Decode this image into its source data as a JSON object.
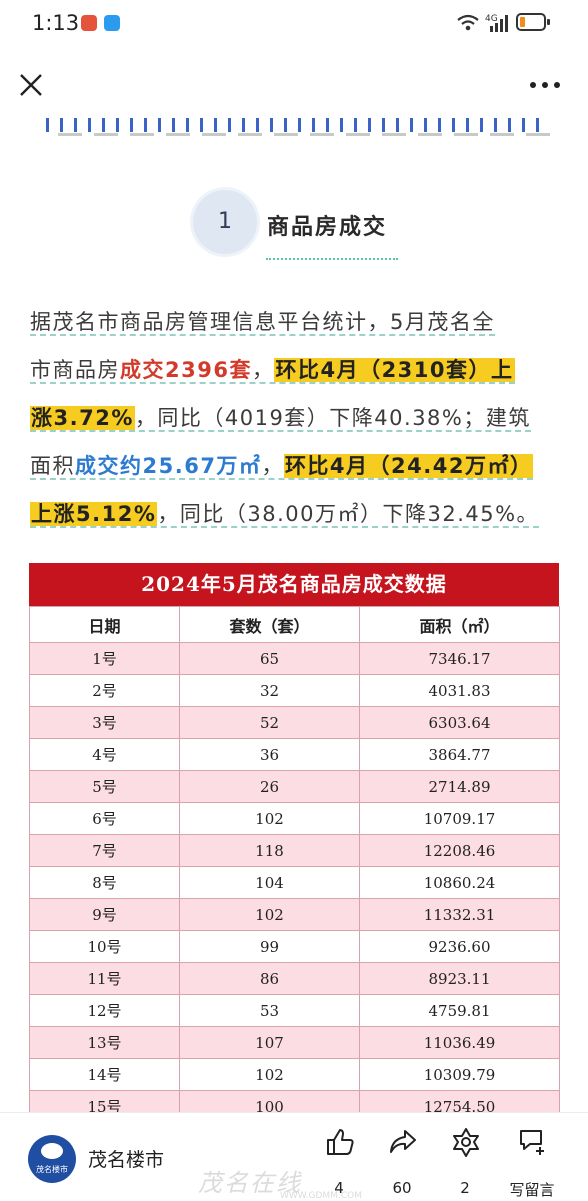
{
  "status_bar": {
    "time": "1:13",
    "network": "4G"
  },
  "article": {
    "section_number": "1",
    "section_title": "商品房成交",
    "paragraph": {
      "l1": "据茂名市商品房管理信息平台统计，5月茂名全",
      "l2a": "市商品房",
      "l2b": "成交2396套",
      "l2c": "，",
      "l2d": "环比4月（2310套）上",
      "l3a": "涨3.72%",
      "l3b": "，同比（4019套）下降40.38%；建筑",
      "l4a": "面积",
      "l4b": "成交约25.67万㎡",
      "l4c": "，",
      "l4d": "环比4月（24.42万㎡）",
      "l5a": "上涨5.12%",
      "l5b": "，同比（38.00万㎡）下降32.45%。"
    },
    "table": {
      "title": "2024年5月茂名商品房成交数据",
      "headers": [
        "日期",
        "套数（套）",
        "面积（㎡）"
      ],
      "rows": [
        [
          "1号",
          "65",
          "7346.17"
        ],
        [
          "2号",
          "32",
          "4031.83"
        ],
        [
          "3号",
          "52",
          "6303.64"
        ],
        [
          "4号",
          "36",
          "3864.77"
        ],
        [
          "5号",
          "26",
          "2714.89"
        ],
        [
          "6号",
          "102",
          "10709.17"
        ],
        [
          "7号",
          "118",
          "12208.46"
        ],
        [
          "8号",
          "104",
          "10860.24"
        ],
        [
          "9号",
          "102",
          "11332.31"
        ],
        [
          "10号",
          "99",
          "9236.60"
        ],
        [
          "11号",
          "86",
          "8923.11"
        ],
        [
          "12号",
          "53",
          "4759.81"
        ],
        [
          "13号",
          "107",
          "11036.49"
        ],
        [
          "14号",
          "102",
          "10309.79"
        ],
        [
          "15号",
          "100",
          "12754.50"
        ]
      ]
    }
  },
  "bottom_bar": {
    "account_name": "茂名楼市",
    "logo_caption": "茂名楼市",
    "like_count": "4",
    "share_count": "60",
    "recommend_count": "2",
    "comment_label": "写留言",
    "watermark": "茂名在线",
    "watermark_url": "WWW.GDMM.COM"
  }
}
